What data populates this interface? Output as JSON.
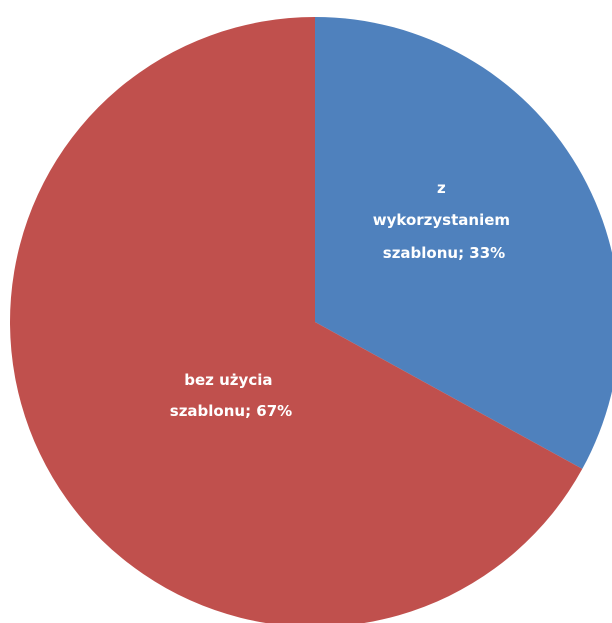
{
  "chart_data": {
    "type": "pie",
    "slices": [
      {
        "label_lines": [
          "z",
          "wykorzystaniem",
          "szablonu; 33%"
        ],
        "value": 33,
        "color": "#4f81bd"
      },
      {
        "label_lines": [
          "bez użycia",
          "szablonu; 67%"
        ],
        "value": 67,
        "color": "#c0504d"
      }
    ],
    "start": "12 o'clock",
    "direction": "clockwise"
  }
}
